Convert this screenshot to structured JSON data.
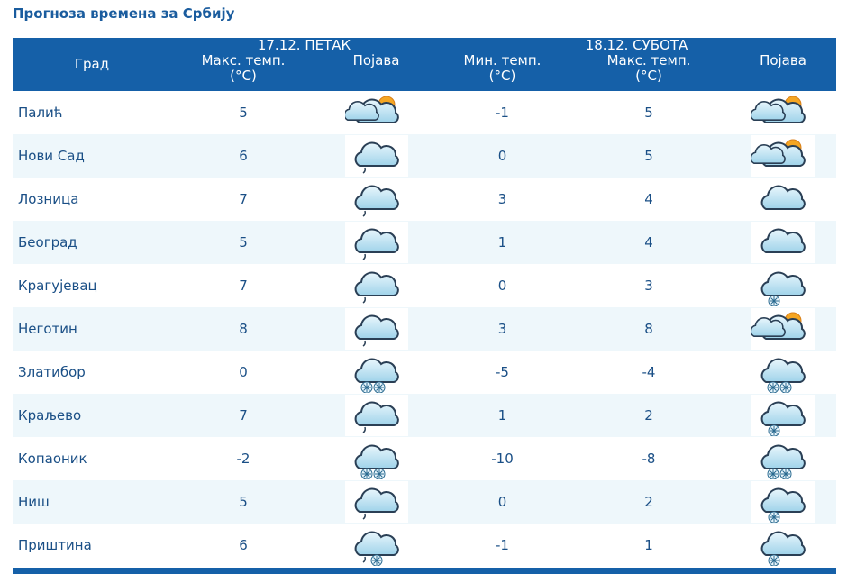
{
  "header": {
    "title": "Прогноза времена за Србију"
  },
  "table": {
    "day_headers": [
      "17.12. ПЕТАК",
      "18.12. СУБОТА"
    ],
    "columns": [
      "Град",
      "Макс. темп. (°C)",
      "Појава",
      "Мин. темп. (°C)",
      "Макс. темп. (°C)",
      "Појава"
    ],
    "rows": [
      [
        "Палић",
        5,
        -1,
        5
      ],
      [
        "Нови Сад",
        6,
        0,
        5
      ],
      [
        "Лозница",
        7,
        3,
        4
      ],
      [
        "Београд",
        5,
        1,
        4
      ],
      [
        "Крагујевац",
        7,
        0,
        3
      ],
      [
        "Неготин",
        8,
        3,
        8
      ],
      [
        "Златибор",
        0,
        -5,
        -4
      ],
      [
        "Краљево",
        7,
        1,
        2
      ],
      [
        "Копаоник",
        -2,
        -10,
        -8
      ],
      [
        "Ниш",
        5,
        0,
        2
      ],
      [
        "Приштина",
        6,
        -1,
        1
      ]
    ]
  }
}
